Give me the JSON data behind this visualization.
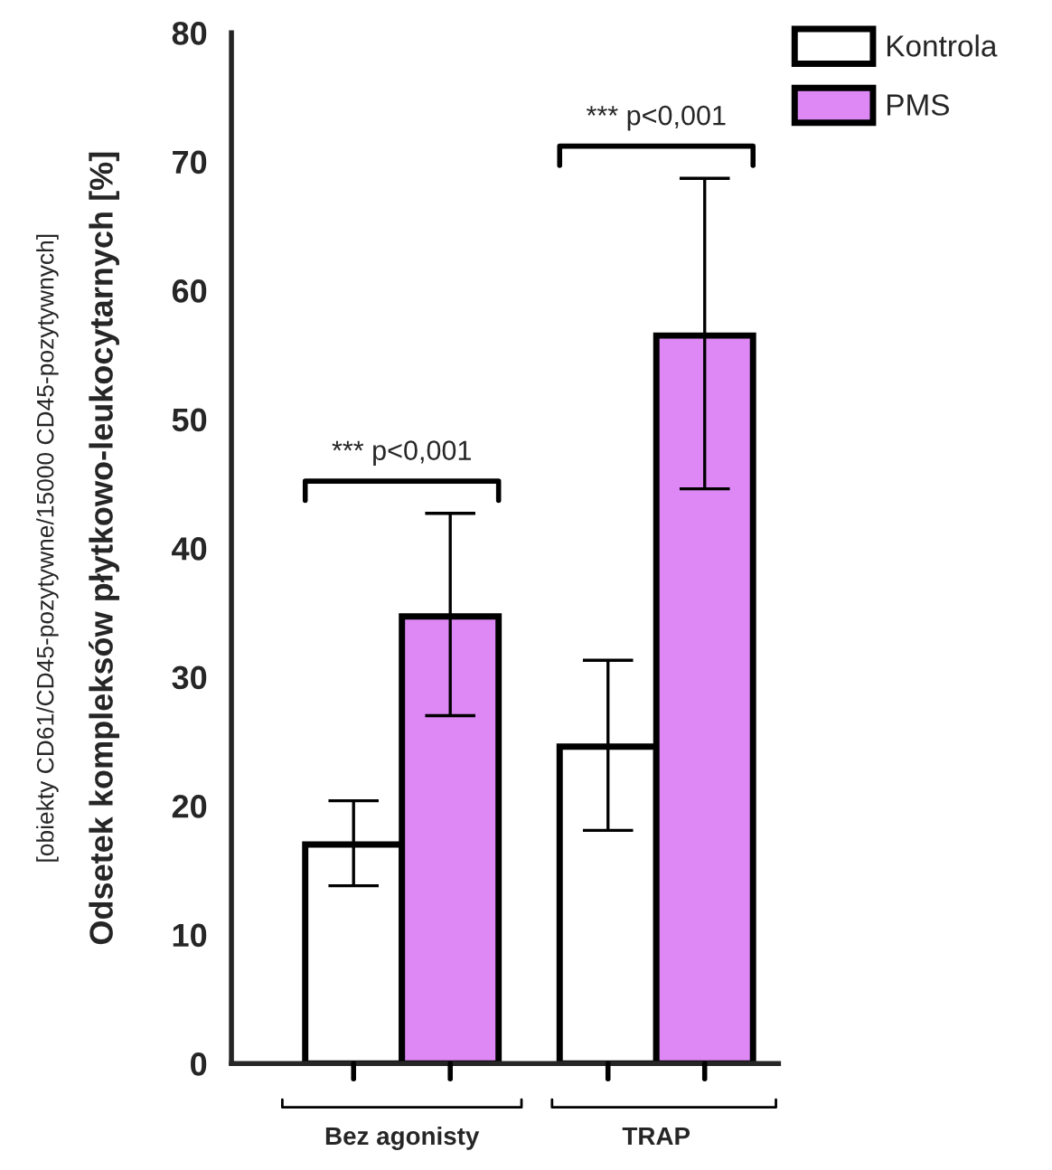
{
  "chart_data": {
    "type": "bar",
    "ylabel": "Odsetek kompleksów płytkowo-leukocytarnych [%]",
    "categories": [
      "Bez agonisty",
      "TRAP"
    ],
    "series": [
      {
        "name": "Kontrola",
        "color": "#ffffff",
        "values": [
          17.0,
          24.6
        ],
        "errors": [
          [
            13.8,
            20.4
          ],
          [
            18.1,
            31.3
          ]
        ]
      },
      {
        "name": "PMS",
        "color": "#dd88f5",
        "values": [
          34.7,
          56.5
        ],
        "errors": [
          [
            27.0,
            42.7
          ],
          [
            44.6,
            68.7
          ]
        ]
      }
    ],
    "ylim": [
      0,
      80
    ],
    "yticks": [
      0,
      10,
      20,
      30,
      40,
      50,
      60,
      70,
      80
    ],
    "grid": false,
    "legend": "top right",
    "annotations": [
      "[obiekty CD61/CD45-pozytywne/15000 CD45-pozytywnych]",
      "*** p<0,001",
      "*** p<0,001"
    ]
  }
}
